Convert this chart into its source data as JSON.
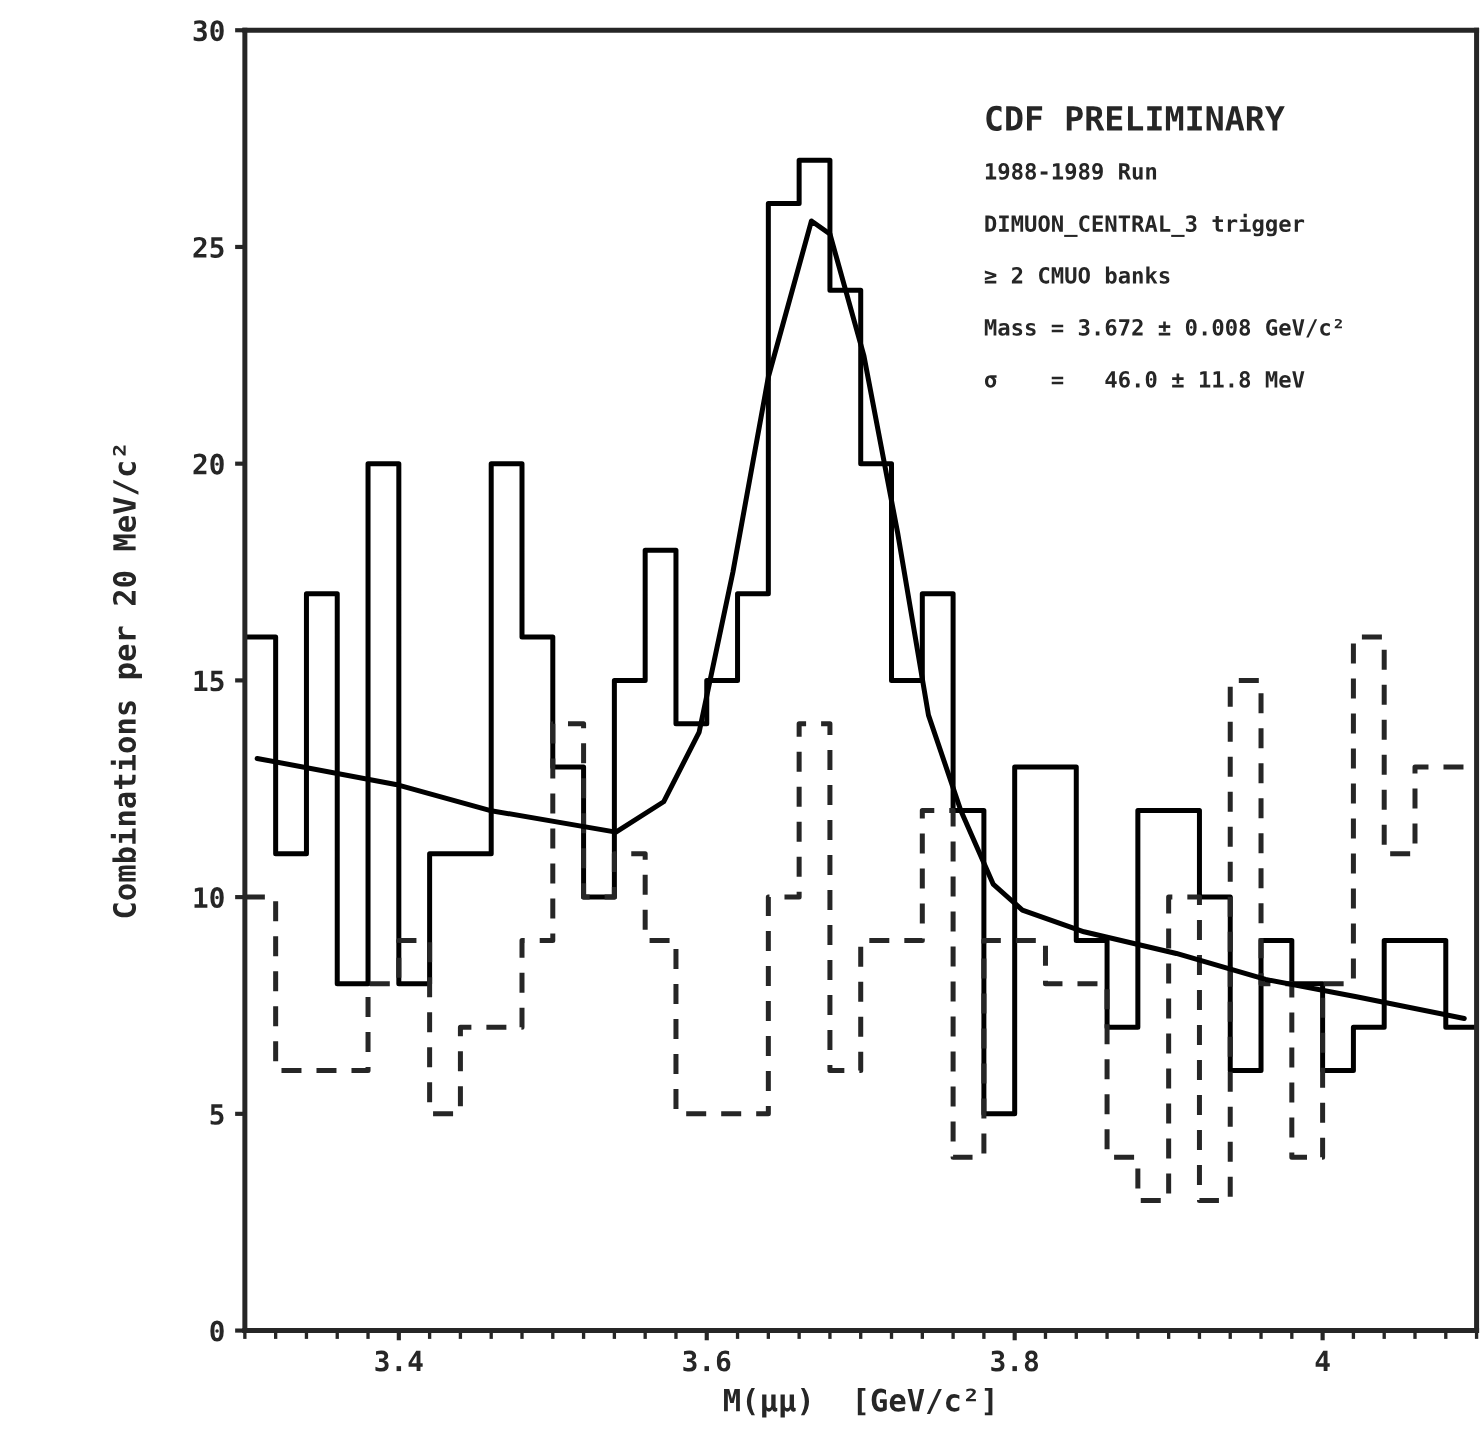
{
  "chart_data": {
    "type": "histogram",
    "xlabel": "M(μμ)  [GeV/c²]",
    "ylabel": "Combinations per 20 MeV/c²",
    "bins": [
      3.3,
      3.32,
      3.34,
      3.36,
      3.38,
      3.4,
      3.42,
      3.44,
      3.46,
      3.48,
      3.5,
      3.52,
      3.54,
      3.56,
      3.58,
      3.6,
      3.62,
      3.64,
      3.66,
      3.68,
      3.7,
      3.72,
      3.74,
      3.76,
      3.78,
      3.8,
      3.82,
      3.84,
      3.86,
      3.88,
      3.9,
      3.92,
      3.94,
      3.96,
      3.98,
      4.0,
      4.02,
      4.04,
      4.06,
      4.08,
      4.1
    ],
    "series": [
      {
        "color": "#000000",
        "line_style": "solid",
        "values": [
          16,
          11,
          17,
          8,
          20,
          8,
          11,
          11,
          20,
          16,
          13,
          10,
          15,
          18,
          14,
          15,
          17,
          26,
          27,
          24,
          20,
          15,
          17,
          12,
          5,
          13,
          13,
          9,
          7,
          12,
          12,
          10,
          6,
          9,
          8,
          6,
          7,
          9,
          9,
          7
        ]
      },
      {
        "color": "#262626",
        "line_style": "dashed",
        "values": [
          10,
          6,
          6,
          6,
          8,
          9,
          5,
          7,
          7,
          9,
          14,
          10,
          11,
          9,
          5,
          5,
          5,
          10,
          14,
          6,
          9,
          9,
          12,
          4,
          9,
          9,
          8,
          8,
          4,
          3,
          10,
          3,
          15,
          8,
          4,
          8,
          16,
          11,
          13,
          13
        ]
      },
      {
        "type": "line",
        "color": "#000000",
        "line_style": "solid",
        "x": [
          3.308,
          3.398,
          3.459,
          3.541,
          3.572,
          3.595,
          3.617,
          3.64,
          3.668,
          3.68,
          3.702,
          3.724,
          3.744,
          3.765,
          3.786,
          3.805,
          3.845,
          3.905,
          3.963,
          4.022,
          4.092
        ],
        "values": [
          13.2,
          12.6,
          12.0,
          11.5,
          12.2,
          13.8,
          17.5,
          22.0,
          25.6,
          25.3,
          22.5,
          18.4,
          14.2,
          12.0,
          10.3,
          9.7,
          9.2,
          8.7,
          8.1,
          7.7,
          7.2
        ]
      }
    ],
    "xlim": [
      3.3,
      4.1
    ],
    "xticks": [
      3.4,
      3.6,
      3.8,
      4
    ],
    "ylim": [
      0,
      30
    ],
    "yticks": [
      0,
      5,
      10,
      15,
      20,
      25,
      30
    ],
    "grid": false,
    "legend": false,
    "annotations": [
      "CDF PRELIMINARY",
      "1988-1989 Run",
      "DIMUON_CENTRAL_3 trigger",
      "≥ 2 CMUO banks",
      "Mass = 3.672 ± 0.008 GeV/c²",
      "σ    =   46.0 ± 11.8 MeV"
    ]
  }
}
